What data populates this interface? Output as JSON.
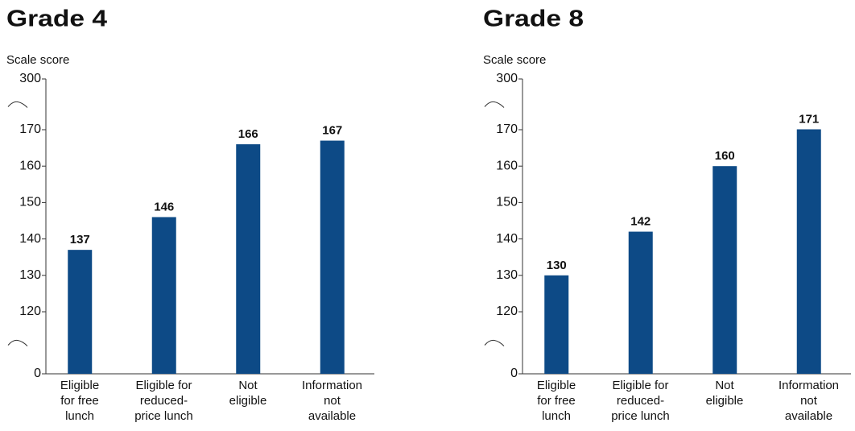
{
  "chart_data": [
    {
      "type": "bar",
      "title": "Grade 4",
      "y_label": "Scale score",
      "categories": [
        "Eligible\nfor free\nlunch",
        "Eligible for\nreduced-\nprice lunch",
        "Not\neligible",
        "Information\nnot\navailable"
      ],
      "values": [
        137,
        146,
        166,
        167
      ],
      "color": "#0d4a86",
      "ylim": [
        0,
        300
      ],
      "yticks": [
        0,
        120,
        130,
        140,
        150,
        160,
        170,
        300
      ],
      "axis_breaks": [
        [
          0,
          120
        ],
        [
          170,
          300
        ]
      ]
    },
    {
      "type": "bar",
      "title": "Grade 8",
      "y_label": "Scale score",
      "categories": [
        "Eligible\nfor free\nlunch",
        "Eligible for\nreduced-\nprice lunch",
        "Not\neligible",
        "Information\nnot\navailable"
      ],
      "values": [
        130,
        142,
        160,
        171
      ],
      "color": "#0d4a86",
      "ylim": [
        0,
        300
      ],
      "yticks": [
        0,
        120,
        130,
        140,
        150,
        160,
        170,
        300
      ],
      "axis_breaks": [
        [
          0,
          120
        ],
        [
          170,
          300
        ]
      ]
    }
  ]
}
